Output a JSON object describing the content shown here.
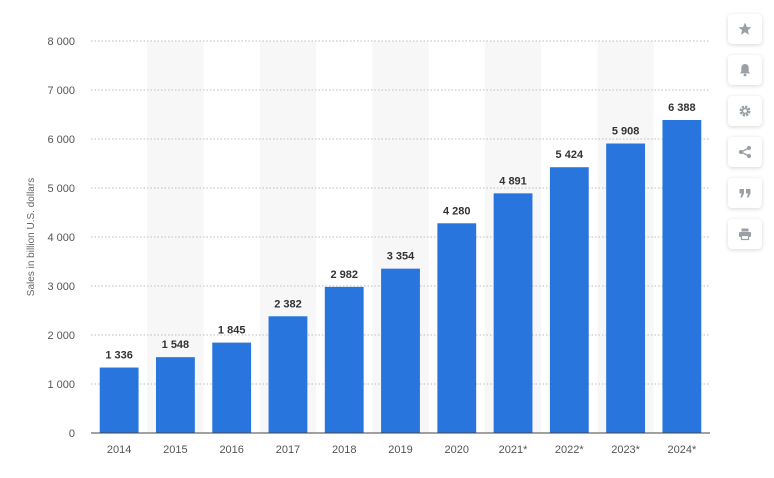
{
  "chart_data": {
    "type": "bar",
    "categories": [
      "2014",
      "2015",
      "2016",
      "2017",
      "2018",
      "2019",
      "2020",
      "2021*",
      "2022*",
      "2023*",
      "2024*"
    ],
    "values": [
      1336,
      1548,
      1845,
      2382,
      2982,
      3354,
      4280,
      4891,
      5424,
      5908,
      6388
    ],
    "value_labels": [
      "1 336",
      "1 548",
      "1 845",
      "2 382",
      "2 982",
      "3 354",
      "4 280",
      "4 891",
      "5 424",
      "5 908",
      "6 388"
    ],
    "ylabel": "Sales in billion U.S. dollars",
    "yticks": [
      0,
      1000,
      2000,
      3000,
      4000,
      5000,
      6000,
      7000,
      8000
    ],
    "ytick_labels": [
      "0",
      "1 000",
      "2 000",
      "3 000",
      "4 000",
      "5 000",
      "6 000",
      "7 000",
      "8 000"
    ],
    "ylim": [
      0,
      8000
    ],
    "bar_color": "#2876dd",
    "grid": true
  },
  "toolbar": {
    "items": [
      {
        "name": "star-icon"
      },
      {
        "name": "bell-icon"
      },
      {
        "name": "gear-icon"
      },
      {
        "name": "share-icon"
      },
      {
        "name": "quote-icon"
      },
      {
        "name": "print-icon"
      }
    ]
  }
}
